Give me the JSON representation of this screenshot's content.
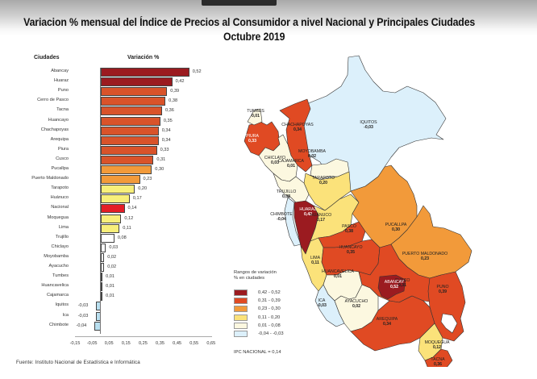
{
  "title": {
    "line1": "Variacion % mensual del Índice de Precios al Consumidor a nivel Nacional y Principales Ciudades",
    "line2": "Octubre 2019"
  },
  "chart_data": {
    "type": "bar",
    "orientation": "horizontal",
    "title": "Variacion % mensual del Índice de Precios al Consumidor a nivel Nacional y Principales Ciudades - Octubre 2019",
    "xlabel": "Variación %",
    "ylabel": "Ciudades",
    "xlim": [
      -0.15,
      0.65
    ],
    "xticks": [
      "-0,15",
      "-0,05",
      "0,05",
      "0,15",
      "0,25",
      "0,35",
      "0,45",
      "0,55",
      "0,65"
    ],
    "grid": false,
    "categories": [
      "Abancay",
      "Huaraz",
      "Puno",
      "Cerro de Pasco",
      "Tacna",
      "Huancayo",
      "Chachapoyas",
      "Arequipa",
      "Piura",
      "Cusco",
      "Pucallpa",
      "Puerto Maldonado",
      "Tarapoto",
      "Huánuco",
      "Nacional",
      "Moquegua",
      "Lima",
      "Trujillo",
      "Chiclayo",
      "Moyobamba",
      "Ayacucho",
      "Tumbes",
      "Huancavelica",
      "Cajamarca",
      "Iquitos",
      "Ica",
      "Chimbote"
    ],
    "values": [
      0.52,
      0.42,
      0.39,
      0.38,
      0.36,
      0.35,
      0.34,
      0.34,
      0.33,
      0.31,
      0.3,
      0.23,
      0.2,
      0.17,
      0.14,
      0.12,
      0.11,
      0.08,
      0.03,
      0.02,
      0.02,
      0.01,
      0.01,
      0.01,
      -0.03,
      -0.03,
      -0.04
    ],
    "labels": [
      "0,52",
      "0,42",
      "0,39",
      "0,38",
      "0,36",
      "0,35",
      "0,34",
      "0,34",
      "0,33",
      "0,31",
      "0,30",
      "0,23",
      "0,20",
      "0,17",
      "0,14",
      "0,12",
      "0,11",
      "0,08",
      "0,03",
      "0,02",
      "0,02",
      "0,01",
      "0,01",
      "0,01",
      "-0,03",
      "-0,03",
      "-0,04"
    ],
    "colors": [
      "#9b1b20",
      "#9b1b20",
      "#d9532a",
      "#d9532a",
      "#d9532a",
      "#d9532a",
      "#d9532a",
      "#d9532a",
      "#d9532a",
      "#d9532a",
      "#f29a3a",
      "#f29a3a",
      "#f8ef7a",
      "#f8ef7a",
      "#e41e26",
      "#f8ef7a",
      "#f8ef7a",
      "#ffffff",
      "#ffffff",
      "#ffffff",
      "#ffffff",
      "#ffffff",
      "#ffffff",
      "#ffffff",
      "#b9e0f0",
      "#b9e0f0",
      "#b9e0f0"
    ]
  },
  "chart_headers": {
    "cities": "Ciudades",
    "variation": "Variación %"
  },
  "source": "Fuente: Instituto Nacional de Estadística e Informática",
  "map": {
    "labels": [
      {
        "name": "TUMBES",
        "value": "0,01"
      },
      {
        "name": "PIURA",
        "value": "0,33"
      },
      {
        "name": "CHACHAPOYAS",
        "value": "0,34"
      },
      {
        "name": "IQUITOS",
        "value": "-0,03"
      },
      {
        "name": "MOYOBAMBA",
        "value": "0,02"
      },
      {
        "name": "CHICLAYO",
        "value": "0,03"
      },
      {
        "name": "CAJAMARCA",
        "value": "0,01"
      },
      {
        "name": "TARAPOTO",
        "value": "0,20"
      },
      {
        "name": "TRUJILLO",
        "value": "0,08"
      },
      {
        "name": "HUARAZ",
        "value": "0,42"
      },
      {
        "name": "CHIMBOTE",
        "value": "-0,04"
      },
      {
        "name": "HUÁNUCO",
        "value": "0,17"
      },
      {
        "name": "PUCALLPA",
        "value": "0,30"
      },
      {
        "name": "PASCO",
        "value": "0,38"
      },
      {
        "name": "HUANCAYO",
        "value": "0,35"
      },
      {
        "name": "LIMA",
        "value": "0,11"
      },
      {
        "name": "PUERTO MALDONADO",
        "value": "0,23"
      },
      {
        "name": "HUANCAVELICA",
        "value": "0,01"
      },
      {
        "name": "CUSCO",
        "value": "0,31"
      },
      {
        "name": "ABANCAY",
        "value": "0,52"
      },
      {
        "name": "ICA",
        "value": "-0,03"
      },
      {
        "name": "AYACUCHO",
        "value": "0,02"
      },
      {
        "name": "PUNO",
        "value": "0,39"
      },
      {
        "name": "AREQUIPA",
        "value": "0,34"
      },
      {
        "name": "MOQUEGUA",
        "value": "0,12"
      },
      {
        "name": "TACNA",
        "value": "0,36"
      }
    ]
  },
  "legend": {
    "title_line1": "Rangos de variación",
    "title_line2": "% en ciudades",
    "items": [
      {
        "label": "0,42 - 0,52",
        "color": "#9b1b20"
      },
      {
        "label": "0,31 - 0,39",
        "color": "#e04a23"
      },
      {
        "label": "0,23 - 0,30",
        "color": "#f29a3a"
      },
      {
        "label": "0,11 - 0,20",
        "color": "#fbe27a"
      },
      {
        "label": "0,01 - 0,08",
        "color": "#fcf8e0"
      },
      {
        "label": "-0,04 - -0,03",
        "color": "#dcf0fb"
      }
    ]
  },
  "ipc_nacional": "IPC NACIONAL =  0,14"
}
